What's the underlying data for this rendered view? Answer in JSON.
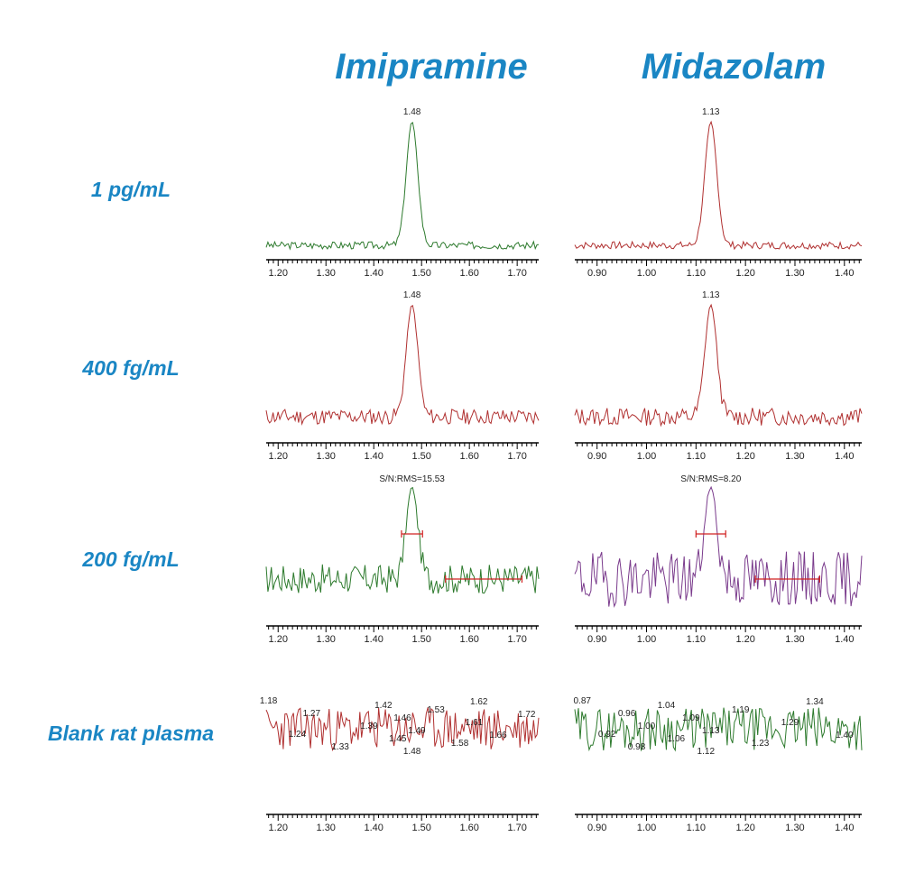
{
  "columns": [
    "Imipramine",
    "Midazolam"
  ],
  "rows": [
    "1 pg/mL",
    "400 fg/mL",
    "200 fg/mL",
    "Blank rat plasma"
  ],
  "colors": {
    "title": "#1a86c4",
    "green": "#2d7a2d",
    "red": "#b03030",
    "purple": "#7a3b8c",
    "marker": "#d02020"
  },
  "chart_data": [
    {
      "type": "line",
      "compound": "Imipramine",
      "row": "1 pg/mL",
      "color": "#2d7a2d",
      "xlim": [
        1.175,
        1.745
      ],
      "ticks": [
        1.2,
        1.3,
        1.4,
        1.5,
        1.6,
        1.7
      ],
      "peak": {
        "rt": 1.48,
        "width": 0.012
      },
      "noise": 0.03,
      "seed": 3,
      "annotations": [
        {
          "text": "1.48",
          "x": 1.48
        }
      ]
    },
    {
      "type": "line",
      "compound": "Midazolam",
      "row": "1 pg/mL",
      "color": "#b03030",
      "xlim": [
        0.855,
        1.435
      ],
      "ticks": [
        0.9,
        1.0,
        1.1,
        1.2,
        1.3,
        1.4
      ],
      "peak": {
        "rt": 1.13,
        "width": 0.012
      },
      "noise": 0.03,
      "seed": 7,
      "annotations": [
        {
          "text": "1.13",
          "x": 1.13
        }
      ]
    },
    {
      "type": "line",
      "compound": "Imipramine",
      "row": "400 fg/mL",
      "color": "#b03030",
      "xlim": [
        1.175,
        1.745
      ],
      "ticks": [
        1.2,
        1.3,
        1.4,
        1.5,
        1.6,
        1.7
      ],
      "peak": {
        "rt": 1.48,
        "width": 0.012
      },
      "noise": 0.07,
      "seed": 11,
      "annotations": [
        {
          "text": "1.48",
          "x": 1.48
        }
      ]
    },
    {
      "type": "line",
      "compound": "Midazolam",
      "row": "400 fg/mL",
      "color": "#b03030",
      "xlim": [
        0.855,
        1.435
      ],
      "ticks": [
        0.9,
        1.0,
        1.1,
        1.2,
        1.3,
        1.4
      ],
      "peak": {
        "rt": 1.13,
        "width": 0.012
      },
      "noise": 0.08,
      "seed": 13,
      "annotations": [
        {
          "text": "1.13",
          "x": 1.13
        }
      ]
    },
    {
      "type": "line",
      "compound": "Imipramine",
      "row": "200 fg/mL",
      "color": "#2d7a2d",
      "xlim": [
        1.175,
        1.745
      ],
      "ticks": [
        1.2,
        1.3,
        1.4,
        1.5,
        1.6,
        1.7
      ],
      "peak": {
        "rt": 1.48,
        "width": 0.012
      },
      "noise": 0.16,
      "seed": 17,
      "sn_label": "S/N:RMS=15.53",
      "peak_bar": [
        1.458,
        1.502
      ],
      "noise_bar": [
        1.55,
        1.71
      ]
    },
    {
      "type": "line",
      "compound": "Midazolam",
      "row": "200 fg/mL",
      "color": "#7a3b8c",
      "xlim": [
        0.855,
        1.435
      ],
      "ticks": [
        0.9,
        1.0,
        1.1,
        1.2,
        1.3,
        1.4
      ],
      "peak": {
        "rt": 1.13,
        "width": 0.012
      },
      "noise": 0.3,
      "seed": 19,
      "sn_label": "S/N:RMS=8.20",
      "peak_bar": [
        1.1,
        1.16
      ],
      "noise_bar": [
        1.22,
        1.35
      ]
    },
    {
      "type": "line",
      "compound": "Imipramine",
      "row": "Blank rat plasma",
      "color": "#b03030",
      "xlim": [
        1.175,
        1.745
      ],
      "ticks": [
        1.2,
        1.3,
        1.4,
        1.5,
        1.6,
        1.7
      ],
      "peak": null,
      "noise": 0.5,
      "seed": 23,
      "annotations": [
        {
          "text": "1.18",
          "x": 1.18
        },
        {
          "text": "1.24",
          "x": 1.24
        },
        {
          "text": "1.27",
          "x": 1.27
        },
        {
          "text": "1.33",
          "x": 1.33
        },
        {
          "text": "1.39",
          "x": 1.39
        },
        {
          "text": "1.42",
          "x": 1.42
        },
        {
          "text": "1.45",
          "x": 1.45
        },
        {
          "text": "1.46",
          "x": 1.46
        },
        {
          "text": "1.48",
          "x": 1.48
        },
        {
          "text": "1.49",
          "x": 1.49
        },
        {
          "text": "1.53",
          "x": 1.53
        },
        {
          "text": "1.58",
          "x": 1.58
        },
        {
          "text": "1.61",
          "x": 1.61
        },
        {
          "text": "1.62",
          "x": 1.62
        },
        {
          "text": "1.66",
          "x": 1.66
        },
        {
          "text": "1.72",
          "x": 1.72
        }
      ]
    },
    {
      "type": "line",
      "compound": "Midazolam",
      "row": "Blank rat plasma",
      "color": "#2d7a2d",
      "xlim": [
        0.855,
        1.435
      ],
      "ticks": [
        0.9,
        1.0,
        1.1,
        1.2,
        1.3,
        1.4
      ],
      "peak": null,
      "noise": 0.5,
      "seed": 29,
      "annotations": [
        {
          "text": "0.87",
          "x": 0.87
        },
        {
          "text": "0.92",
          "x": 0.92
        },
        {
          "text": "0.96",
          "x": 0.96
        },
        {
          "text": "0.98",
          "x": 0.98
        },
        {
          "text": "1.00",
          "x": 1.0
        },
        {
          "text": "1.04",
          "x": 1.04
        },
        {
          "text": "1.06",
          "x": 1.06
        },
        {
          "text": "1.09",
          "x": 1.09
        },
        {
          "text": "1.12",
          "x": 1.12
        },
        {
          "text": "1.13",
          "x": 1.13
        },
        {
          "text": "1.19",
          "x": 1.19
        },
        {
          "text": "1.23",
          "x": 1.23
        },
        {
          "text": "1.29",
          "x": 1.29
        },
        {
          "text": "1.34",
          "x": 1.34
        },
        {
          "text": "1.40",
          "x": 1.4
        }
      ]
    }
  ]
}
